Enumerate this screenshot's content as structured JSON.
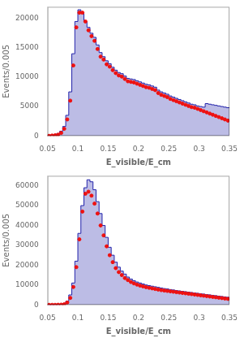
{
  "chart_data": [
    {
      "type": "histogram",
      "xlabel": "E_visible/E_cm",
      "ylabel": "Events/0.005",
      "xlim": [
        0.05,
        0.35
      ],
      "ylim": [
        0,
        22000
      ],
      "xticks": [
        0.05,
        0.1,
        0.15,
        0.2,
        0.25,
        0.3,
        0.35
      ],
      "yticks": [
        0,
        5000,
        10000,
        15000,
        20000
      ],
      "grid": false,
      "series": [
        {
          "type": "histogram",
          "color": "#2222aa",
          "bins": [
            0.05,
            0.055,
            0.06,
            0.065,
            0.07,
            0.075,
            0.08,
            0.085,
            0.09,
            0.095,
            0.1,
            0.105,
            0.11,
            0.115,
            0.12,
            0.125,
            0.13,
            0.135,
            0.14,
            0.145,
            0.15,
            0.155,
            0.16,
            0.165,
            0.17,
            0.175,
            0.18,
            0.185,
            0.19,
            0.195,
            0.2,
            0.205,
            0.21,
            0.215,
            0.22,
            0.225,
            0.23,
            0.235,
            0.24,
            0.245,
            0.25,
            0.255,
            0.26,
            0.265,
            0.27,
            0.275,
            0.28,
            0.285,
            0.29,
            0.295,
            0.3,
            0.305,
            0.31,
            0.315,
            0.32,
            0.325,
            0.33,
            0.335,
            0.34,
            0.345,
            0.35
          ],
          "values": [
            50,
            100,
            200,
            400,
            800,
            1600,
            3500,
            7500,
            14000,
            19500,
            21500,
            21000,
            19500,
            18500,
            17500,
            16800,
            15500,
            14200,
            13500,
            12800,
            12300,
            11700,
            11200,
            10800,
            10600,
            10200,
            9800,
            9700,
            9600,
            9400,
            9200,
            9000,
            8800,
            8700,
            8500,
            8300,
            7800,
            7500,
            7300,
            7100,
            6800,
            6600,
            6400,
            6200,
            6000,
            5800,
            5600,
            5400,
            5300,
            5100,
            5000,
            4900,
            5500,
            5400,
            5300,
            5200,
            5100,
            5000,
            4900,
            4800
          ]
        },
        {
          "type": "scatter",
          "color": "#ee1111",
          "marker": "circle",
          "x": [
            0.0525,
            0.0575,
            0.0625,
            0.0675,
            0.0725,
            0.0775,
            0.0825,
            0.0875,
            0.0925,
            0.0975,
            0.1025,
            0.1075,
            0.1125,
            0.1175,
            0.1225,
            0.1275,
            0.1325,
            0.1375,
            0.1425,
            0.1475,
            0.1525,
            0.1575,
            0.1625,
            0.1675,
            0.1725,
            0.1775,
            0.1825,
            0.1875,
            0.1925,
            0.1975,
            0.2025,
            0.2075,
            0.2125,
            0.2175,
            0.2225,
            0.2275,
            0.2325,
            0.2375,
            0.2425,
            0.2475,
            0.2525,
            0.2575,
            0.2625,
            0.2675,
            0.2725,
            0.2775,
            0.2825,
            0.2875,
            0.2925,
            0.2975,
            0.3025,
            0.3075,
            0.3125,
            0.3175,
            0.3225,
            0.3275,
            0.3325,
            0.3375,
            0.3425,
            0.3475
          ],
          "values": [
            0,
            50,
            100,
            200,
            500,
            1200,
            2800,
            6000,
            12000,
            18500,
            21000,
            21000,
            19500,
            18000,
            17000,
            16200,
            14800,
            13500,
            13000,
            12200,
            11800,
            11200,
            10700,
            10300,
            10100,
            9700,
            9300,
            9200,
            9100,
            8900,
            8700,
            8500,
            8300,
            8200,
            8000,
            7800,
            7300,
            7000,
            6800,
            6600,
            6300,
            6100,
            5900,
            5700,
            5500,
            5300,
            5100,
            4900,
            4800,
            4600,
            4400,
            4200,
            4000,
            3800,
            3600,
            3400,
            3200,
            3000,
            2800,
            2600
          ]
        }
      ]
    },
    {
      "type": "histogram",
      "xlabel": "E_visible/E_cm",
      "ylabel": "Events/0.005",
      "xlim": [
        0.05,
        0.35
      ],
      "ylim": [
        0,
        65000
      ],
      "xticks": [
        0.05,
        0.1,
        0.15,
        0.2,
        0.25,
        0.3,
        0.35
      ],
      "yticks": [
        0,
        10000,
        20000,
        30000,
        40000,
        50000,
        60000
      ],
      "grid": false,
      "series": [
        {
          "type": "histogram",
          "color": "#2222aa",
          "bins": [
            0.05,
            0.055,
            0.06,
            0.065,
            0.07,
            0.075,
            0.08,
            0.085,
            0.09,
            0.095,
            0.1,
            0.105,
            0.11,
            0.115,
            0.12,
            0.125,
            0.13,
            0.135,
            0.14,
            0.145,
            0.15,
            0.155,
            0.16,
            0.165,
            0.17,
            0.175,
            0.18,
            0.185,
            0.19,
            0.195,
            0.2,
            0.205,
            0.21,
            0.215,
            0.22,
            0.225,
            0.23,
            0.235,
            0.24,
            0.245,
            0.25,
            0.255,
            0.26,
            0.265,
            0.27,
            0.275,
            0.28,
            0.285,
            0.29,
            0.295,
            0.3,
            0.305,
            0.31,
            0.315,
            0.32,
            0.325,
            0.33,
            0.335,
            0.34,
            0.345,
            0.35
          ],
          "values": [
            0,
            0,
            50,
            100,
            200,
            600,
            1800,
            5000,
            11000,
            22000,
            36000,
            50000,
            59000,
            63000,
            62000,
            58000,
            52000,
            46000,
            40000,
            34000,
            29000,
            25000,
            21500,
            19000,
            17000,
            15500,
            14000,
            13000,
            12200,
            11500,
            11000,
            10500,
            10000,
            9700,
            9400,
            9100,
            8800,
            8500,
            8200,
            8000,
            7700,
            7500,
            7200,
            7000,
            6800,
            6600,
            6400,
            6200,
            6000,
            5800,
            5600,
            5400,
            5200,
            5000,
            4800,
            4600,
            4400,
            4200,
            4000,
            3800
          ]
        },
        {
          "type": "scatter",
          "color": "#ee1111",
          "marker": "circle",
          "x": [
            0.0525,
            0.0575,
            0.0625,
            0.0675,
            0.0725,
            0.0775,
            0.0825,
            0.0875,
            0.0925,
            0.0975,
            0.1025,
            0.1075,
            0.1125,
            0.1175,
            0.1225,
            0.1275,
            0.1325,
            0.1375,
            0.1425,
            0.1475,
            0.1525,
            0.1575,
            0.1625,
            0.1675,
            0.1725,
            0.1775,
            0.1825,
            0.1875,
            0.1925,
            0.1975,
            0.2025,
            0.2075,
            0.2125,
            0.2175,
            0.2225,
            0.2275,
            0.2325,
            0.2375,
            0.2425,
            0.2475,
            0.2525,
            0.2575,
            0.2625,
            0.2675,
            0.2725,
            0.2775,
            0.2825,
            0.2875,
            0.2925,
            0.2975,
            0.3025,
            0.3075,
            0.3125,
            0.3175,
            0.3225,
            0.3275,
            0.3325,
            0.3375,
            0.3425,
            0.3475
          ],
          "values": [
            0,
            0,
            0,
            50,
            100,
            300,
            1200,
            3500,
            9000,
            19000,
            33000,
            47000,
            56000,
            57000,
            55000,
            51000,
            46000,
            40000,
            35000,
            29500,
            25000,
            21500,
            18500,
            16500,
            15000,
            13500,
            12500,
            11500,
            10800,
            10200,
            9700,
            9300,
            8900,
            8600,
            8300,
            8000,
            7700,
            7400,
            7200,
            7000,
            6800,
            6600,
            6400,
            6200,
            6000,
            5800,
            5600,
            5400,
            5200,
            5000,
            4800,
            4600,
            4400,
            4200,
            4000,
            3800,
            3600,
            3400,
            3200,
            3000
          ]
        }
      ]
    }
  ]
}
